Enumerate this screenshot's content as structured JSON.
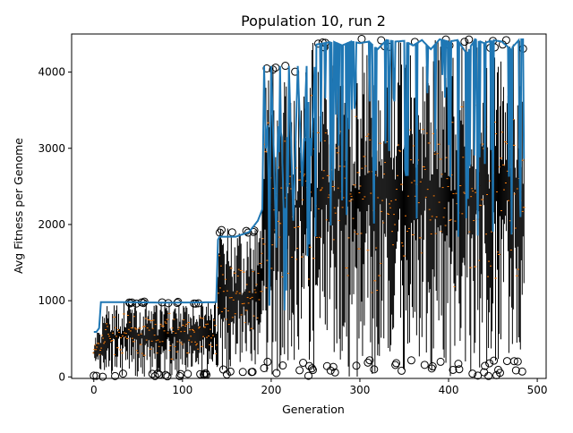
{
  "chart_data": {
    "type": "line",
    "title": "Population 10, run 2",
    "xlabel": "Generation",
    "ylabel": "Avg Fitness per Genome",
    "xlim": [
      -25,
      510
    ],
    "ylim": [
      -20,
      4500
    ],
    "x_ticks": [
      0,
      100,
      200,
      300,
      400,
      500
    ],
    "y_ticks": [
      0,
      1000,
      2000,
      3000,
      4000
    ],
    "grid": false,
    "legend": "none",
    "colors": {
      "mean_line": "#1f77b4",
      "range_bars": "#000000",
      "median_marks": "#ff7f0e",
      "outlier_markers": "#000000"
    },
    "series": [
      {
        "kind": "mean-line",
        "x": [
          0,
          3,
          6,
          8,
          40,
          80,
          120,
          138,
          140,
          142,
          160,
          175,
          185,
          190,
          192,
          194,
          196,
          198,
          200,
          205,
          210,
          215,
          220,
          225,
          230,
          235,
          240,
          245,
          250,
          260,
          270,
          280,
          290,
          300,
          310,
          320,
          330,
          340,
          350,
          360,
          370,
          380,
          390,
          400,
          410,
          420,
          430,
          440,
          450,
          460,
          470,
          480,
          485
        ],
        "y": [
          590,
          590,
          640,
          980,
          980,
          975,
          978,
          980,
          1800,
          1840,
          1840,
          1900,
          2050,
          2200,
          4080,
          3000,
          3300,
          1950,
          4080,
          2100,
          4080,
          1750,
          4080,
          2050,
          4080,
          2500,
          4080,
          2900,
          4360,
          4380,
          4400,
          4350,
          4400,
          4380,
          4400,
          4300,
          4420,
          4400,
          4410,
          4350,
          4420,
          4300,
          4430,
          4400,
          4420,
          4250,
          4430,
          4380,
          4420,
          4400,
          4300,
          4430,
          4430
        ]
      },
      {
        "kind": "range-bars",
        "segments": [
          {
            "x_from": 0,
            "x_to": 10,
            "low": 0,
            "high": 600
          },
          {
            "x_from": 10,
            "x_to": 140,
            "low": 0,
            "high": 990
          },
          {
            "x_from": 140,
            "x_to": 190,
            "low": 0,
            "high": 1950
          },
          {
            "x_from": 190,
            "x_to": 245,
            "low": 0,
            "high": 4100
          },
          {
            "x_from": 245,
            "x_to": 300,
            "low": 0,
            "high": 4400
          },
          {
            "x_from": 300,
            "x_to": 486,
            "low": 0,
            "high": 4440
          }
        ]
      }
    ]
  }
}
